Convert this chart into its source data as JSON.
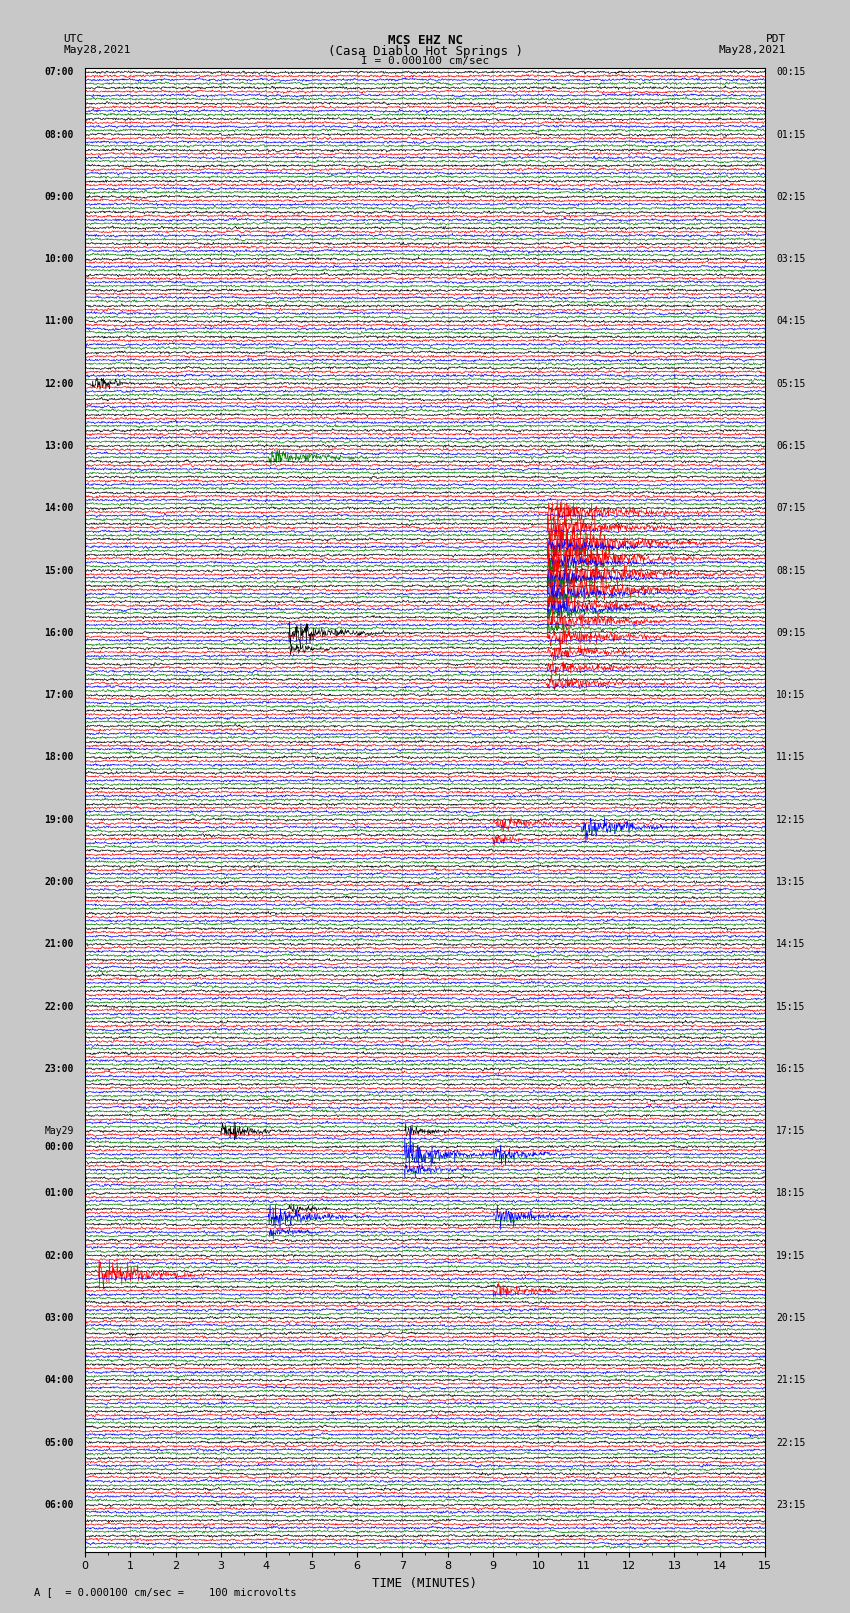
{
  "title_line1": "MCS EHZ NC",
  "title_line2": "(Casa Diablo Hot Springs )",
  "scale_text": "I = 0.000100 cm/sec",
  "left_label_top": "UTC",
  "left_label_date": "May28,2021",
  "right_label_top": "PDT",
  "right_label_date": "May28,2021",
  "bottom_label": "TIME (MINUTES)",
  "bottom_note": "A [  = 0.000100 cm/sec =    100 microvolts",
  "utc_times": [
    "07:00",
    "",
    "",
    "",
    "08:00",
    "",
    "",
    "",
    "09:00",
    "",
    "",
    "",
    "10:00",
    "",
    "",
    "",
    "11:00",
    "",
    "",
    "",
    "12:00",
    "",
    "",
    "",
    "13:00",
    "",
    "",
    "",
    "14:00",
    "",
    "",
    "",
    "15:00",
    "",
    "",
    "",
    "16:00",
    "",
    "",
    "",
    "17:00",
    "",
    "",
    "",
    "18:00",
    "",
    "",
    "",
    "19:00",
    "",
    "",
    "",
    "20:00",
    "",
    "",
    "",
    "21:00",
    "",
    "",
    "",
    "22:00",
    "",
    "",
    "",
    "23:00",
    "",
    "",
    "",
    "May29",
    "00:00",
    "",
    "",
    "01:00",
    "",
    "",
    "",
    "02:00",
    "",
    "",
    "",
    "03:00",
    "",
    "",
    "",
    "04:00",
    "",
    "",
    "",
    "05:00",
    "",
    "",
    "",
    "06:00",
    "",
    ""
  ],
  "pdt_times": [
    "00:15",
    "",
    "",
    "",
    "01:15",
    "",
    "",
    "",
    "02:15",
    "",
    "",
    "",
    "03:15",
    "",
    "",
    "",
    "04:15",
    "",
    "",
    "",
    "05:15",
    "",
    "",
    "",
    "06:15",
    "",
    "",
    "",
    "07:15",
    "",
    "",
    "",
    "08:15",
    "",
    "",
    "",
    "09:15",
    "",
    "",
    "",
    "10:15",
    "",
    "",
    "",
    "11:15",
    "",
    "",
    "",
    "12:15",
    "",
    "",
    "",
    "13:15",
    "",
    "",
    "",
    "14:15",
    "",
    "",
    "",
    "15:15",
    "",
    "",
    "",
    "16:15",
    "",
    "",
    "",
    "17:15",
    "",
    "",
    "",
    "18:15",
    "",
    "",
    "",
    "19:15",
    "",
    "",
    "",
    "20:15",
    "",
    "",
    "",
    "21:15",
    "",
    "",
    "",
    "22:15",
    "",
    "",
    "",
    "23:15",
    "",
    ""
  ],
  "colors": [
    "black",
    "red",
    "blue",
    "green"
  ],
  "bg_color": "#c8c8c8",
  "plot_bg": "#ffffff",
  "n_minutes": 15,
  "fig_width": 8.5,
  "fig_height": 16.13,
  "dpi": 100
}
